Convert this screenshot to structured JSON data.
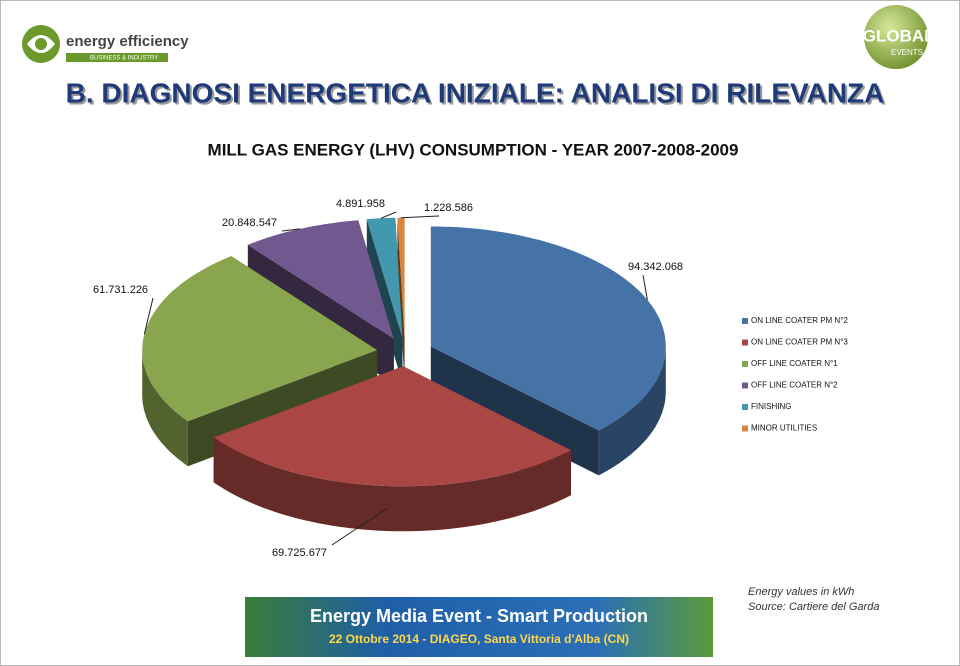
{
  "header": {
    "title": "B. DIAGNOSI ENERGETICA INIZIALE: ANALISI DI RILEVANZA",
    "logo_left": "energy efficiency",
    "logo_left_tagline": "BUSINESS & INDUSTRY",
    "logo_right": "TIMGLOBAL",
    "logo_right_tagline": "EVENTS"
  },
  "chart_data": {
    "type": "pie",
    "title": "MILL GAS ENERGY (LHV) CONSUMPTION - YEAR 2007-2008-2009",
    "categories": [
      "ON LINE COATER PM N°2",
      "ON LINE COATER PM N°3",
      "OFF LINE COATER N°1",
      "OFF LINE COATER N°2",
      "FINISHING",
      "MINOR UTILITIES"
    ],
    "values": [
      94342068,
      69725677,
      61731226,
      20848547,
      4891958,
      1228586
    ],
    "value_labels": [
      "94.342.068",
      "69.725.677",
      "61.731.226",
      "20.848.547",
      "4.891.958",
      "1.228.586"
    ],
    "colors": [
      "#4572a7",
      "#aa4643",
      "#89a54e",
      "#71588f",
      "#4198af",
      "#db843d"
    ],
    "legend": "right"
  },
  "notes": [
    "Energy values in kWh",
    "Source: Cartiere del Garda"
  ],
  "banner": {
    "title": "Energy Media Event - Smart Production",
    "subtitle": "22 Ottobre 2014 - DIAGEO, Santa Vittoria d'Alba (CN)"
  }
}
